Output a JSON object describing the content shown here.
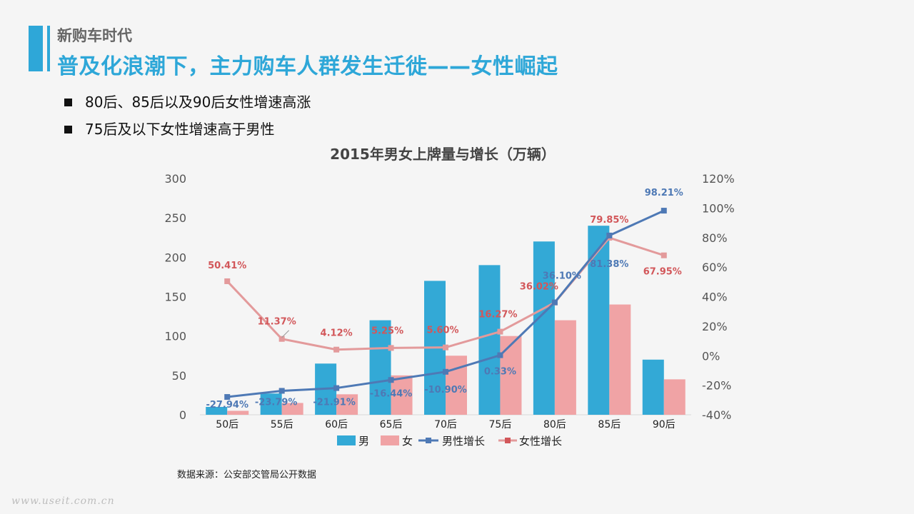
{
  "header": {
    "kicker": "新购车时代",
    "headline": "普及化浪潮下，主力购车人群发生迁徙——女性崛起"
  },
  "bullets": [
    " 80后、85后以及90后女性增速高涨",
    "75后及以下女性增速高于男性"
  ],
  "source": "数据来源：公安部交管局公开数据",
  "watermark": "www.useit.com.cn",
  "colors": {
    "accent": "#2ea7d8",
    "male_bar": "#33a9d6",
    "female_bar": "#f0a3a5",
    "male_line": "#4e79b5",
    "female_line": "#e39a9b",
    "male_label": "#4e79b5",
    "female_label": "#d2575a"
  },
  "chart_data": {
    "type": "bar",
    "title": "2015年男女上牌量与增长（万辆）",
    "categories": [
      "50后",
      "55后",
      "60后",
      "65后",
      "70后",
      "75后",
      "80后",
      "85后",
      "90后"
    ],
    "y_left": {
      "min": 0,
      "max": 300,
      "ticks": [
        "0",
        "50",
        "100",
        "150",
        "200",
        "250",
        "300"
      ]
    },
    "y_right": {
      "min": -40,
      "max": 120,
      "ticks": [
        "-40%",
        "-20%",
        "0%",
        "20%",
        "40%",
        "60%",
        "80%",
        "100%",
        "120%"
      ]
    },
    "series": [
      {
        "name": "男",
        "type": "bar",
        "axis": "left",
        "values": [
          10,
          27,
          65,
          120,
          170,
          190,
          220,
          240,
          70
        ]
      },
      {
        "name": "女",
        "type": "bar",
        "axis": "left",
        "values": [
          5,
          15,
          26,
          50,
          75,
          100,
          120,
          140,
          45
        ]
      },
      {
        "name": "男性增长",
        "type": "line",
        "axis": "right",
        "values": [
          -27.94,
          -23.79,
          -21.91,
          -16.44,
          -10.9,
          0.33,
          36.1,
          81.38,
          98.21
        ],
        "labels": [
          "-27.94%",
          "-23.79%",
          "-21.91%",
          "-16.44%",
          "-10.90%",
          "0.33%",
          "36.10%",
          "81.38%",
          "98.21%"
        ]
      },
      {
        "name": "女性增长",
        "type": "line",
        "axis": "right",
        "values": [
          50.41,
          11.37,
          4.12,
          5.25,
          5.6,
          16.27,
          36.02,
          79.85,
          67.95
        ],
        "labels": [
          "50.41%",
          "11.37%",
          "4.12%",
          "5.25%",
          "5.60%",
          "16.27%",
          "36.02%",
          "79.85%",
          "67.95%"
        ]
      }
    ],
    "legend": [
      "男",
      "女",
      "男性增长",
      "女性增长"
    ],
    "legend_position": "bottom",
    "grid": false
  }
}
